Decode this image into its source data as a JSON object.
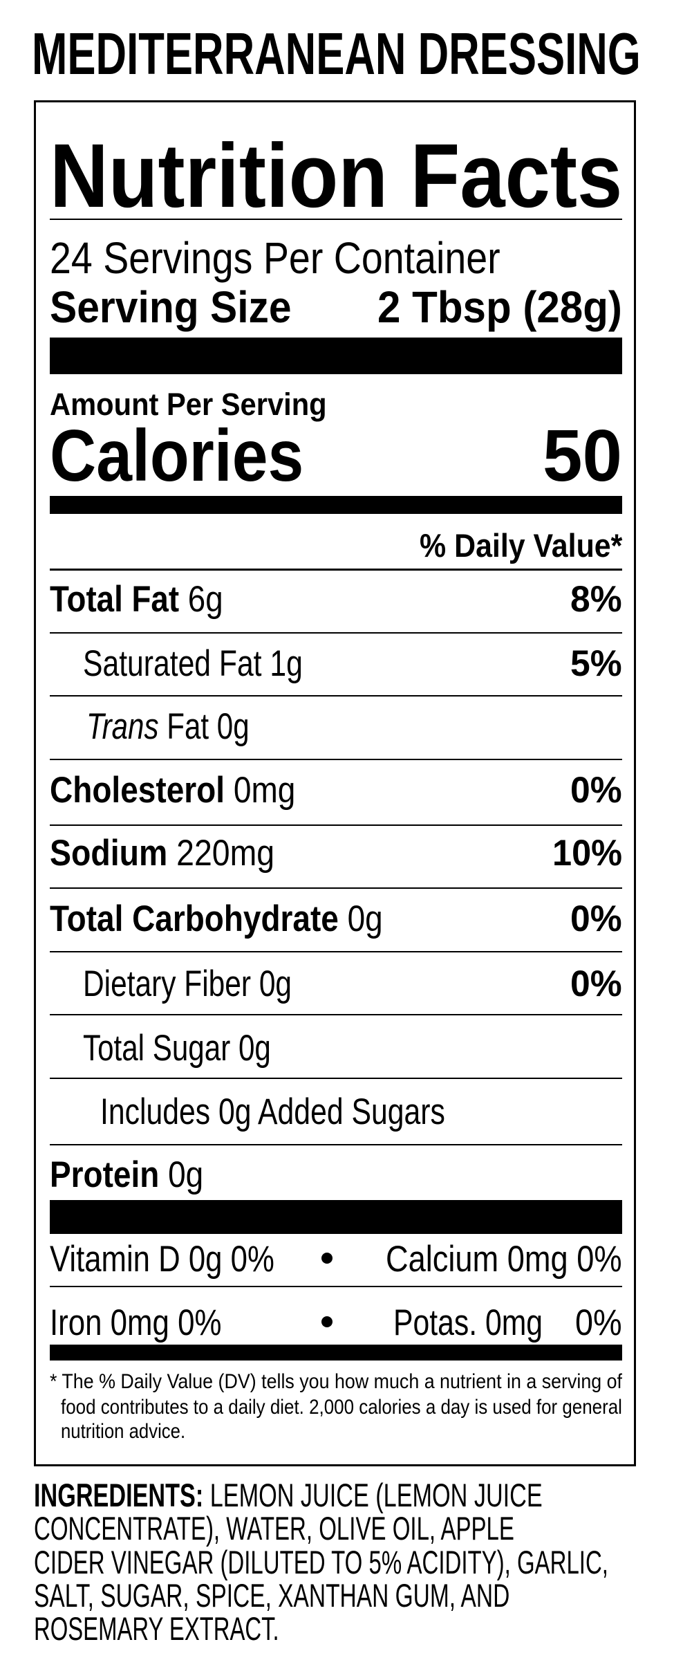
{
  "product_name": "MEDITERRANEAN DRESSING",
  "panel": {
    "title": "Nutrition Facts",
    "servings_per_container": "24 Servings Per Container",
    "serving_size_label": "Serving Size",
    "serving_size_value": "2 Tbsp (28g)",
    "amount_per_serving": "Amount Per Serving",
    "calories_label": "Calories",
    "calories_value": 50,
    "daily_value_header": "% Daily Value*",
    "nutrients": [
      {
        "name": "Total Fat",
        "amount": "6g",
        "dv": "8%"
      },
      {
        "name": "Saturated Fat",
        "amount": "1g",
        "dv": "5%"
      },
      {
        "name": "Trans",
        "name_rest": "Fat",
        "amount": "0g"
      },
      {
        "name": "Cholesterol",
        "amount": "0mg",
        "dv": "0%"
      },
      {
        "name": "Sodium",
        "amount": "220mg",
        "dv": "10%"
      },
      {
        "name": "Total Carbohydrate",
        "amount": "0g",
        "dv": "0%"
      },
      {
        "name": "Dietary Fiber",
        "amount": "0g",
        "dv": "0%"
      },
      {
        "name": "Total Sugar",
        "amount": "0g"
      },
      {
        "name": "Includes 0g Added Sugars"
      },
      {
        "name": "Protein",
        "amount": "0g"
      }
    ],
    "vitamins": [
      {
        "left": "Vitamin D 0g 0%",
        "right": "Calcium 0mg 0%"
      },
      {
        "left": "Iron 0mg 0%",
        "right": "Potas. 0mg",
        "right_dv": "0%"
      }
    ],
    "footnote": [
      "* The % Daily Value (DV) tells you how much a nutrient in a serving of",
      "food contributes to a daily diet. 2,000 calories a day is used for general",
      "nutrition advice."
    ]
  },
  "ingredients": {
    "label": "INGREDIENTS:",
    "lines": [
      "LEMON JUICE (LEMON JUICE",
      "CONCENTRATE), WATER, OLIVE OIL, APPLE",
      "CIDER VINEGAR (DILUTED TO 5% ACIDITY), GARLIC,",
      "SALT, SUGAR, SPICE, XANTHAN GUM, AND",
      "ROSEMARY EXTRACT."
    ]
  }
}
